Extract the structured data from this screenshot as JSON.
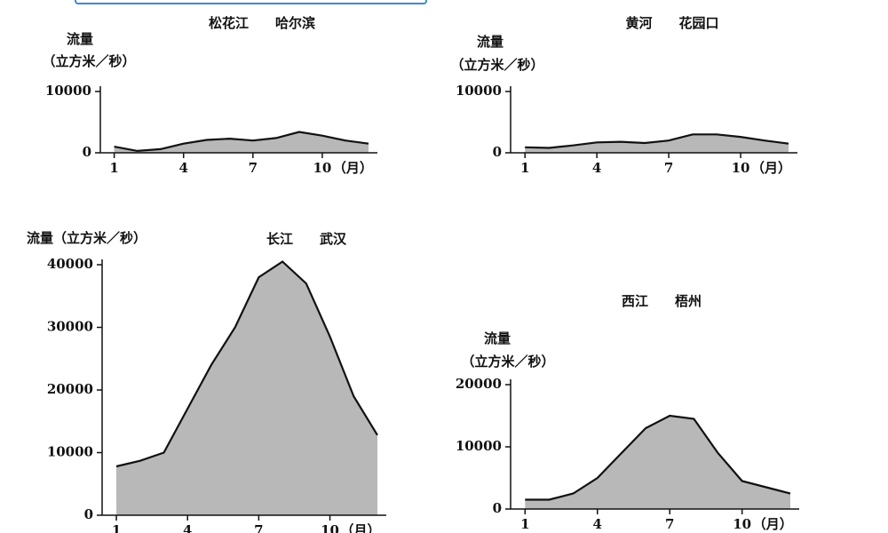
{
  "chart_data": [
    {
      "type": "area",
      "title": "松花江　　哈尔滨",
      "y_label": [
        "流量",
        "（立方米／秒）"
      ],
      "x_label": "（月）",
      "x": [
        1,
        2,
        3,
        4,
        5,
        6,
        7,
        8,
        9,
        10,
        11,
        12
      ],
      "values": [
        1000,
        300,
        600,
        1500,
        2100,
        2300,
        2000,
        2400,
        3400,
        2800,
        2000,
        1500
      ],
      "xlim": [
        0.4,
        12
      ],
      "xticks": [
        1,
        4,
        7,
        10
      ],
      "ylim": [
        0,
        10000
      ],
      "yticks": [
        0,
        10000
      ],
      "color": "#b8b8b8"
    },
    {
      "type": "area",
      "title": "黄河　　花园口",
      "y_label": [
        "流量",
        "（立方米／秒）"
      ],
      "x_label": "（月）",
      "x": [
        1,
        2,
        3,
        4,
        5,
        6,
        7,
        8,
        9,
        10,
        11,
        12
      ],
      "values": [
        900,
        800,
        1200,
        1700,
        1800,
        1600,
        2000,
        3000,
        3000,
        2600,
        2000,
        1500
      ],
      "xlim": [
        0.4,
        12
      ],
      "xticks": [
        1,
        4,
        7,
        10
      ],
      "ylim": [
        0,
        10000
      ],
      "yticks": [
        0,
        10000
      ],
      "color": "#b8b8b8"
    },
    {
      "type": "area",
      "title": "长江　　武汉",
      "y_label": [
        "流量（立方米／秒）"
      ],
      "x_label": "（月）",
      "x": [
        1,
        2,
        3,
        4,
        5,
        6,
        7,
        8,
        9,
        10,
        11,
        12
      ],
      "values": [
        7800,
        8700,
        10000,
        17000,
        24000,
        30000,
        38000,
        40500,
        37000,
        28500,
        19000,
        12800
      ],
      "xlim": [
        0.4,
        12
      ],
      "xticks": [
        1,
        4,
        7,
        10
      ],
      "ylim": [
        0,
        40000
      ],
      "yticks": [
        0,
        10000,
        20000,
        30000,
        40000
      ],
      "color": "#b8b8b8"
    },
    {
      "type": "area",
      "title": "西江　　梧州",
      "y_label": [
        "流量",
        "（立方米／秒）"
      ],
      "x_label": "（月）",
      "x": [
        1,
        2,
        3,
        4,
        5,
        6,
        7,
        8,
        9,
        10,
        11,
        12
      ],
      "values": [
        1500,
        1500,
        2500,
        5000,
        9000,
        13000,
        15000,
        14500,
        9000,
        4500,
        3500,
        2500
      ],
      "xlim": [
        0.4,
        12
      ],
      "xticks": [
        1,
        4,
        7,
        10
      ],
      "ylim": [
        0,
        20000
      ],
      "yticks": [
        0,
        10000,
        20000
      ],
      "color": "#b8b8b8"
    }
  ]
}
